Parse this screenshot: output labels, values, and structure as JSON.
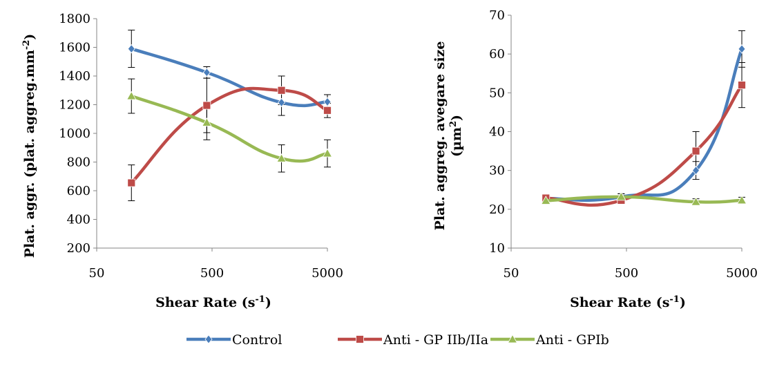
{
  "series_styles": [
    {
      "name": "Control",
      "color": "#4a7ebb",
      "marker": "diamond"
    },
    {
      "name": "Anti - GP IIb/IIa",
      "color": "#be4b48",
      "marker": "square"
    },
    {
      "name": "Anti - GPIb",
      "color": "#98b954",
      "marker": "triangle"
    }
  ],
  "legend": {
    "position": "bottom",
    "items": [
      "Control",
      "Anti - GP IIb/IIa",
      "Anti - GPIb"
    ]
  },
  "chart_data": [
    {
      "type": "line",
      "smooth": true,
      "title": "",
      "xlabel": "Shear Rate (s-1)",
      "xlabel_main": "Shear Rate (s",
      "xlabel_sup": "-1",
      "xlabel_close": ")",
      "ylabel": "Plat. aggr. (plat. aggreg.mm-2)",
      "ylabel_main": "Plat. aggr. (plat. aggreg.mm",
      "ylabel_sup": "-2",
      "ylabel_close": ")",
      "x_scale": "log",
      "x_ticks": [
        50,
        500,
        5000
      ],
      "x_tick_labels": [
        "50",
        "500",
        "5000"
      ],
      "x": [
        100,
        450,
        2000,
        5000
      ],
      "ylim": [
        200,
        1800
      ],
      "y_ticks": [
        200,
        400,
        600,
        800,
        1000,
        1200,
        1400,
        1600,
        1800
      ],
      "y_tick_labels": [
        "200",
        "400",
        "600",
        "800",
        "1000",
        "1200",
        "1400",
        "1600",
        "1800"
      ],
      "grid": false,
      "series": [
        {
          "name": "Control",
          "values": [
            1590,
            1425,
            1215,
            1220
          ],
          "errors": [
            130,
            40,
            90,
            50
          ]
        },
        {
          "name": "Anti - GP IIb/IIa",
          "values": [
            655,
            1195,
            1300,
            1160
          ],
          "errors": [
            125,
            190,
            100,
            50
          ]
        },
        {
          "name": "Anti - GPIb",
          "values": [
            1260,
            1075,
            825,
            860
          ],
          "errors": [
            120,
            120,
            95,
            95
          ]
        }
      ]
    },
    {
      "type": "line",
      "smooth": true,
      "title": "",
      "xlabel": "Shear Rate (s-1)",
      "xlabel_main": "Shear Rate (s",
      "xlabel_sup": "-1",
      "xlabel_close": ")",
      "ylabel": "Plat. aggreg. avegare size (µm2)",
      "ylabel_line1": "Plat. aggreg. avegare size",
      "ylabel_line2_main": "(µm",
      "ylabel_line2_sup": "2",
      "ylabel_line2_close": ")",
      "x_scale": "log",
      "x_ticks": [
        50,
        500,
        5000
      ],
      "x_tick_labels": [
        "50",
        "500",
        "5000"
      ],
      "x": [
        100,
        450,
        2000,
        5000
      ],
      "ylim": [
        10,
        70
      ],
      "y_ticks": [
        10,
        20,
        30,
        40,
        50,
        60,
        70
      ],
      "y_tick_labels": [
        "10",
        "20",
        "30",
        "40",
        "50",
        "60",
        "70"
      ],
      "grid": false,
      "series": [
        {
          "name": "Control",
          "values": [
            22.8,
            23.2,
            30,
            61.3
          ],
          "errors": [
            0.6,
            0.8,
            2.3,
            4.7
          ]
        },
        {
          "name": "Anti - GP IIb/IIa",
          "values": [
            22.9,
            22.3,
            35,
            52
          ],
          "errors": [
            0.6,
            0.8,
            5,
            5.8
          ]
        },
        {
          "name": "Anti - GPIb",
          "values": [
            22.2,
            23.2,
            21.9,
            22.3
          ],
          "errors": [
            0.6,
            0.8,
            0.8,
            0.8
          ]
        }
      ]
    }
  ]
}
